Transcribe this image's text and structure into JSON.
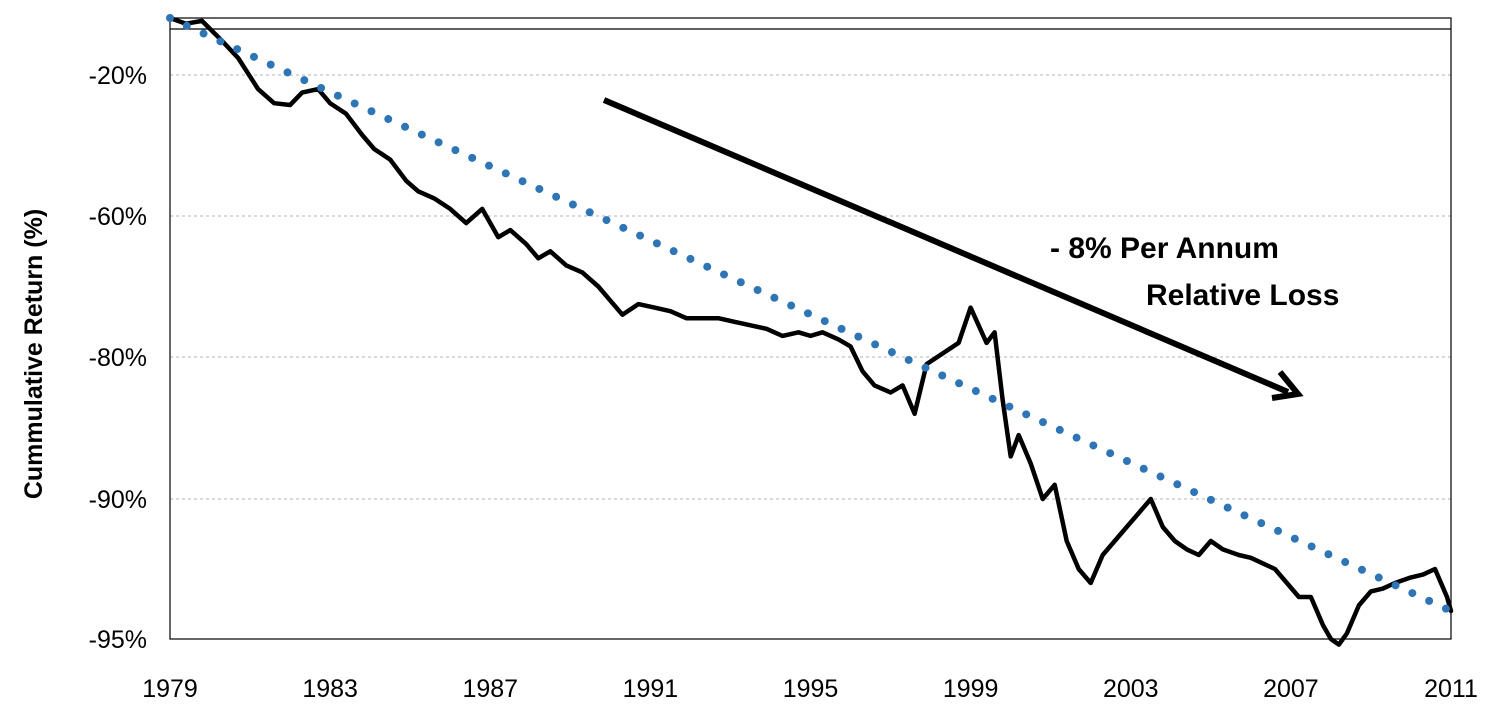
{
  "chart_data": {
    "type": "line",
    "ylabel": "Cummulative Return (%)",
    "xlabel": "",
    "xlim": [
      1979,
      2011
    ],
    "x_ticks": [
      "1979",
      "1983",
      "1987",
      "1991",
      "1995",
      "1999",
      "2003",
      "2007",
      "2011"
    ],
    "y_ticks": [
      "-20%",
      "-60%",
      "-80%",
      "-90%",
      "-95%"
    ],
    "grid": "horizontal dashed",
    "annotations": [
      {
        "text_line1": "- 8% Per Annum",
        "text_line2": "Relative Loss",
        "arrow": "down-right"
      }
    ],
    "series": [
      {
        "style": "solid",
        "color": "#000000",
        "x": [
          1979.0,
          1979.4,
          1979.8,
          1980.3,
          1980.7,
          1981.2,
          1981.6,
          1982.0,
          1982.3,
          1982.7,
          1983.0,
          1983.4,
          1983.8,
          1984.1,
          1984.5,
          1984.9,
          1985.2,
          1985.6,
          1986.0,
          1986.4,
          1986.8,
          1987.2,
          1987.5,
          1987.9,
          1988.2,
          1988.5,
          1988.9,
          1989.3,
          1989.7,
          1990.0,
          1990.3,
          1990.7,
          1991.1,
          1991.5,
          1991.9,
          1992.3,
          1992.7,
          1993.1,
          1993.5,
          1993.9,
          1994.3,
          1994.7,
          1995.0,
          1995.3,
          1995.7,
          1996.0,
          1996.3,
          1996.6,
          1997.0,
          1997.3,
          1997.6,
          1997.9,
          1998.3,
          1998.7,
          1999.0,
          1999.2,
          1999.4,
          1999.6,
          1999.8,
          2000.0,
          2000.2,
          2000.5,
          2000.8,
          2001.1,
          2001.4,
          2001.7,
          2002.0,
          2002.3,
          2002.6,
          2002.9,
          2003.2,
          2003.5,
          2003.8,
          2004.1,
          2004.4,
          2004.7,
          2005.0,
          2005.3,
          2005.7,
          2006.0,
          2006.3,
          2006.6,
          2006.9,
          2007.2,
          2007.5,
          2007.8,
          2008.0,
          2008.2,
          2008.4,
          2008.7,
          2009.0,
          2009.3,
          2009.6,
          2010.0,
          2010.3,
          2010.6,
          2010.9,
          2011.0
        ],
        "y": [
          -10.0,
          -11.0,
          -10.5,
          -14.0,
          -17.0,
          -24.0,
          -28.0,
          -28.5,
          -25.0,
          -24.0,
          -28.0,
          -31.0,
          -37.0,
          -41.0,
          -44.0,
          -50.0,
          -53.0,
          -55.0,
          -58.0,
          -61.0,
          -58.0,
          -63.0,
          -62.0,
          -64.0,
          -66.0,
          -65.0,
          -67.0,
          -68.0,
          -70.0,
          -72.0,
          -74.0,
          -72.5,
          -73.0,
          -73.5,
          -74.5,
          -74.5,
          -74.5,
          -75.0,
          -75.5,
          -76.0,
          -77.0,
          -76.5,
          -77.0,
          -76.5,
          -77.5,
          -78.5,
          -81.0,
          -82.0,
          -82.5,
          -82.0,
          -84.0,
          -80.5,
          -79.5,
          -78.0,
          -73.0,
          -75.5,
          -78.0,
          -76.5,
          -83.0,
          -87.0,
          -85.5,
          -87.5,
          -90.0,
          -89.0,
          -91.5,
          -92.5,
          -93.0,
          -92.0,
          -91.5,
          -91.0,
          -90.5,
          -90.0,
          -91.0,
          -91.5,
          -91.8,
          -92.0,
          -91.5,
          -91.8,
          -92.0,
          -92.1,
          -92.3,
          -92.5,
          -93.0,
          -93.5,
          -93.5,
          -94.5,
          -95.0,
          -95.2,
          -94.8,
          -93.8,
          -93.3,
          -93.2,
          -93.0,
          -92.8,
          -92.7,
          -92.5,
          -93.5,
          -94.0
        ]
      },
      {
        "style": "dotted",
        "color": "#2E75B6",
        "x": [
          1979.0,
          2011.0
        ],
        "y": [
          -10.0,
          -94.0
        ]
      }
    ]
  }
}
